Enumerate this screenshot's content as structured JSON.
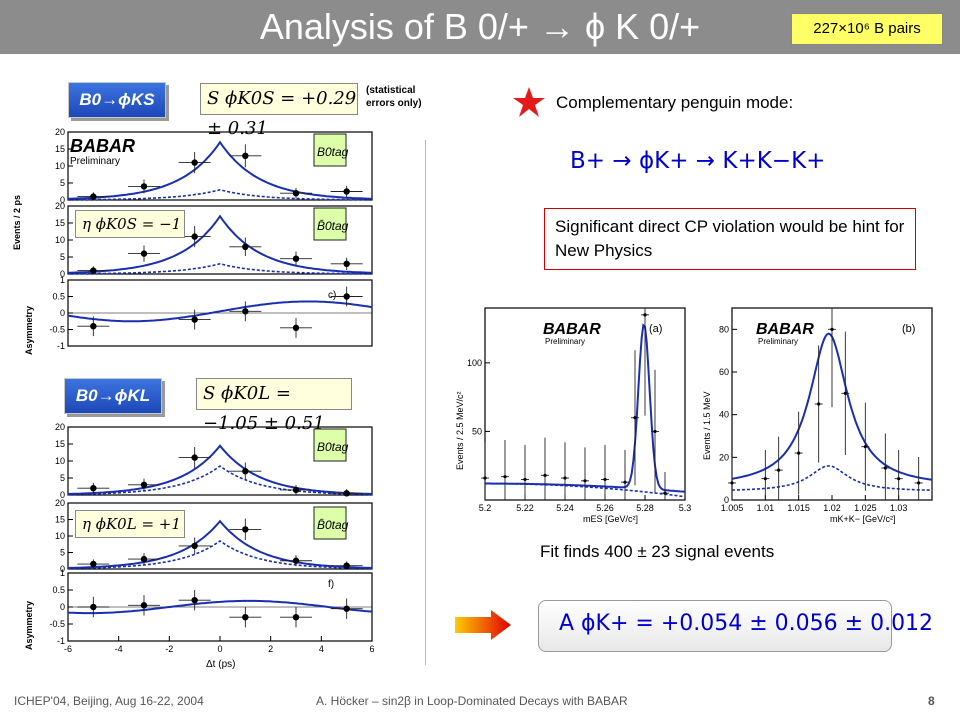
{
  "title": "Analysis of B 0/+ → ϕ K 0/+",
  "badge": "227×10⁶ B pairs",
  "left": {
    "ks": {
      "label": "B0→ϕKS",
      "s_value": "S ϕK0S = +0.29 ± 0.31",
      "note": "(statistical errors only)",
      "babar": "BABAR",
      "preliminary": "Preliminary",
      "eta_label": "η ϕK0S = −1",
      "tag1": "B0tag",
      "tag2": "B̄0tag",
      "panel_c": "c)",
      "ylabel_top": "Events / 2 ps",
      "ylabel_asym": "Asymmetry"
    },
    "kl": {
      "label": "B0→ϕKL",
      "s_value": "S ϕK0L = −1.05 ± 0.51",
      "eta_label": "η ϕK0L = +1",
      "tag1": "B0tag",
      "tag2": "B̄0tag",
      "panel_f": "f)",
      "ylabel_asym": "Asymmetry",
      "xlabel": "Δt (ps)"
    }
  },
  "right": {
    "complementary": "Complementary penguin mode:",
    "decay": "B+  →  ϕK+  →  K+K−K+",
    "significant": "Significant direct CP violation would be hint for New Physics",
    "fit_text": "Fit finds 400 ± 23 signal events",
    "asym_formula": "A ϕK+  = +0.054 ± 0.056 ± 0.012",
    "plot_a": {
      "panel": "(a)",
      "babar": "BABAR",
      "preliminary": "Preliminary",
      "ylabel": "Events / 2.5 MeV/c²",
      "xlabel": "mES [GeV/c²]"
    },
    "plot_b": {
      "panel": "(b)",
      "babar": "BABAR",
      "preliminary": "Preliminary",
      "ylabel": "Events / 1.5 MeV",
      "xlabel": "mK+K− [GeV/c²]"
    }
  },
  "footer": {
    "left": "ICHEP'04, Beijing, Aug 16-22, 2004",
    "center": "A. Höcker – sin2β in Loop-Dominated Decays with BABAR",
    "page": "8"
  },
  "chart_data": [
    {
      "type": "scatter",
      "id": "ks-btag",
      "x": [
        -5,
        -3,
        -1,
        1,
        3,
        5
      ],
      "values": [
        1,
        4,
        11,
        13,
        2,
        2.5
      ],
      "xlim": [
        -6,
        6
      ],
      "ylim": [
        0,
        20
      ],
      "ticks_y": [
        0,
        5,
        10,
        15,
        20
      ]
    },
    {
      "type": "scatter",
      "id": "ks-bbartag",
      "x": [
        -5,
        -3,
        -1,
        1,
        3,
        5
      ],
      "values": [
        1,
        6,
        11,
        8,
        4.5,
        3
      ],
      "xlim": [
        -6,
        6
      ],
      "ylim": [
        0,
        20
      ],
      "ticks_y": [
        0,
        5,
        10,
        15,
        20
      ]
    },
    {
      "type": "scatter",
      "id": "ks-asym",
      "x": [
        -5,
        -1,
        1,
        3,
        5
      ],
      "values": [
        -0.4,
        -0.2,
        0.05,
        -0.45,
        0.5
      ],
      "xlim": [
        -6,
        6
      ],
      "ylim": [
        -1,
        1
      ],
      "ticks_y": [
        -1,
        -0.5,
        0,
        0.5,
        1
      ]
    },
    {
      "type": "scatter",
      "id": "kl-btag",
      "x": [
        -5,
        -3,
        -1,
        1,
        3,
        5
      ],
      "values": [
        2,
        3,
        11,
        7,
        1.5,
        0.5
      ],
      "xlim": [
        -6,
        6
      ],
      "ylim": [
        0,
        20
      ],
      "ticks_y": [
        0,
        5,
        10,
        15,
        20
      ]
    },
    {
      "type": "scatter",
      "id": "kl-bbartag",
      "x": [
        -5,
        -3,
        -1,
        1,
        3,
        5
      ],
      "values": [
        1.5,
        3,
        7,
        12,
        2.5,
        1
      ],
      "xlim": [
        -6,
        6
      ],
      "ylim": [
        0,
        20
      ],
      "ticks_y": [
        0,
        5,
        10,
        15,
        20
      ]
    },
    {
      "type": "scatter",
      "id": "kl-asym",
      "x": [
        -5,
        -3,
        -1,
        1,
        3,
        5
      ],
      "values": [
        0,
        0.05,
        0.2,
        -0.3,
        -0.3,
        -0.05
      ],
      "xlim": [
        -6,
        6
      ],
      "ylim": [
        -1,
        1
      ],
      "ticks_y": [
        -1,
        -0.5,
        0,
        0.5,
        1
      ],
      "ticks_x": [
        -6,
        -4,
        -2,
        0,
        2,
        4,
        6
      ]
    },
    {
      "type": "scatter",
      "id": "mes",
      "x": [
        5.2,
        5.21,
        5.22,
        5.23,
        5.24,
        5.25,
        5.26,
        5.27,
        5.275,
        5.28,
        5.285,
        5.29
      ],
      "values": [
        16,
        17,
        15,
        18,
        16,
        14,
        15,
        13,
        60,
        135,
        50,
        5
      ],
      "xlim": [
        5.2,
        5.3
      ],
      "ylim": [
        0,
        140
      ],
      "ticks_x": [
        5.2,
        5.22,
        5.24,
        5.26,
        5.28,
        5.3
      ],
      "ticks_y": [
        50,
        100
      ]
    },
    {
      "type": "scatter",
      "id": "mkk",
      "x": [
        1.005,
        1.01,
        1.012,
        1.015,
        1.018,
        1.02,
        1.022,
        1.025,
        1.028,
        1.03,
        1.033
      ],
      "values": [
        8,
        10,
        14,
        22,
        45,
        80,
        50,
        25,
        15,
        10,
        8
      ],
      "xlim": [
        1.005,
        1.035
      ],
      "ylim": [
        0,
        90
      ],
      "ticks_x": [
        1.005,
        1.01,
        1.015,
        1.02,
        1.025,
        1.03
      ],
      "ticks_y": [
        0,
        20,
        40,
        60,
        80
      ]
    }
  ]
}
